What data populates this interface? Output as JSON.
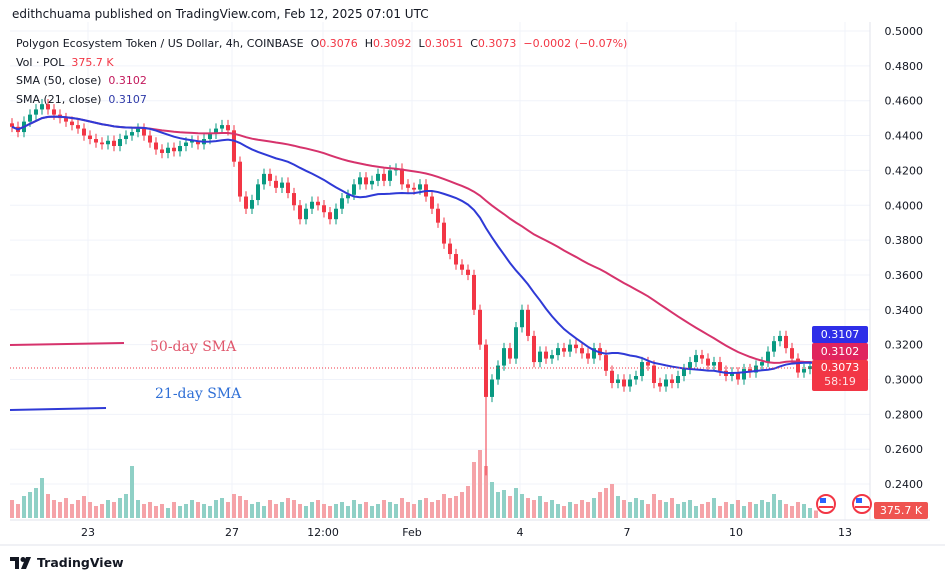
{
  "header": {
    "published": "edithchuama published on TradingView.com, Feb 12, 2025 07:01 UTC"
  },
  "legend": {
    "symbol": "Polygon Ecosystem Token / US Dollar, 4h, COINBASE",
    "o_label": "O",
    "o": "0.3076",
    "h_label": "H",
    "h": "0.3092",
    "l_label": "L",
    "l": "0.3051",
    "c_label": "C",
    "c": "0.3073",
    "change": "−0.0002 (−0.07%)",
    "vol_label": "Vol · POL",
    "vol": "375.7 K",
    "sma50_label": "SMA (50, close)",
    "sma50": "0.3102",
    "sma21_label": "SMA (21, close)",
    "sma21": "0.3107"
  },
  "annotations": {
    "sma50": "50-day SMA",
    "sma21": "21-day SMA"
  },
  "price_labels": {
    "sma21": "0.3107",
    "sma50": "0.3102",
    "last": "0.3073",
    "countdown": "58:19",
    "volume": "375.7 K"
  },
  "footer": {
    "brand": "TradingView"
  },
  "colors": {
    "up": "#089981",
    "down": "#f23645",
    "sma50": "#d6336c",
    "sma21": "#2f3ad6"
  },
  "chart_data": {
    "type": "candlestick",
    "interval": "4h",
    "ylim": [
      0.24,
      0.5
    ],
    "y_ticks": [
      "0.5000",
      "0.4800",
      "0.4600",
      "0.4400",
      "0.4200",
      "0.4000",
      "0.3800",
      "0.3600",
      "0.3400",
      "0.3200",
      "0.3000",
      "0.2800",
      "0.2600",
      "0.2400"
    ],
    "x_ticks": [
      "23",
      "27",
      "12:00",
      "Feb",
      "4",
      "7",
      "10",
      "13"
    ],
    "closes": [
      0.445,
      0.442,
      0.448,
      0.452,
      0.455,
      0.458,
      0.455,
      0.452,
      0.45,
      0.448,
      0.446,
      0.444,
      0.44,
      0.438,
      0.436,
      0.435,
      0.437,
      0.434,
      0.438,
      0.44,
      0.442,
      0.444,
      0.44,
      0.436,
      0.432,
      0.43,
      0.433,
      0.431,
      0.434,
      0.436,
      0.437,
      0.435,
      0.438,
      0.441,
      0.444,
      0.446,
      0.443,
      0.425,
      0.405,
      0.398,
      0.403,
      0.412,
      0.418,
      0.414,
      0.41,
      0.413,
      0.407,
      0.4,
      0.392,
      0.398,
      0.402,
      0.4,
      0.396,
      0.392,
      0.398,
      0.404,
      0.406,
      0.412,
      0.416,
      0.412,
      0.414,
      0.418,
      0.414,
      0.42,
      0.421,
      0.412,
      0.41,
      0.409,
      0.412,
      0.405,
      0.398,
      0.39,
      0.378,
      0.372,
      0.366,
      0.363,
      0.36,
      0.34,
      0.32,
      0.29,
      0.3,
      0.308,
      0.318,
      0.312,
      0.33,
      0.34,
      0.325,
      0.31,
      0.316,
      0.312,
      0.314,
      0.318,
      0.316,
      0.32,
      0.318,
      0.315,
      0.312,
      0.318,
      0.314,
      0.305,
      0.298,
      0.3,
      0.296,
      0.3,
      0.302,
      0.31,
      0.308,
      0.298,
      0.296,
      0.3,
      0.298,
      0.302,
      0.306,
      0.31,
      0.314,
      0.312,
      0.308,
      0.31,
      0.305,
      0.302,
      0.304,
      0.3,
      0.306,
      0.304,
      0.308,
      0.31,
      0.316,
      0.322,
      0.325,
      0.318,
      0.312,
      0.304,
      0.306,
      0.3076,
      0.3073
    ],
    "low_wick": {
      "index": 79,
      "low": 0.245
    },
    "volumes_k": [
      900,
      700,
      1100,
      1300,
      1500,
      2000,
      1200,
      900,
      800,
      1000,
      700,
      900,
      1100,
      800,
      600,
      700,
      900,
      800,
      1000,
      1200,
      2600,
      900,
      700,
      800,
      600,
      700,
      500,
      800,
      600,
      700,
      900,
      800,
      700,
      600,
      900,
      1000,
      800,
      1200,
      1100,
      900,
      700,
      800,
      600,
      900,
      700,
      800,
      1000,
      900,
      700,
      600,
      800,
      900,
      700,
      600,
      700,
      800,
      600,
      900,
      700,
      800,
      600,
      700,
      900,
      800,
      700,
      1000,
      800,
      700,
      900,
      1000,
      800,
      900,
      1200,
      1000,
      1100,
      1300,
      1600,
      2800,
      3400,
      2600,
      1800,
      1300,
      1400,
      1100,
      1500,
      1200,
      1000,
      900,
      1100,
      800,
      900,
      700,
      600,
      800,
      700,
      900,
      800,
      1000,
      1300,
      1500,
      1700,
      1100,
      900,
      800,
      1000,
      900,
      700,
      1200,
      900,
      800,
      1000,
      700,
      800,
      900,
      600,
      700,
      800,
      1000,
      600,
      800,
      700,
      900,
      600,
      800,
      700,
      900,
      800,
      1200,
      900,
      700,
      600,
      800,
      700,
      500,
      376
    ]
  }
}
